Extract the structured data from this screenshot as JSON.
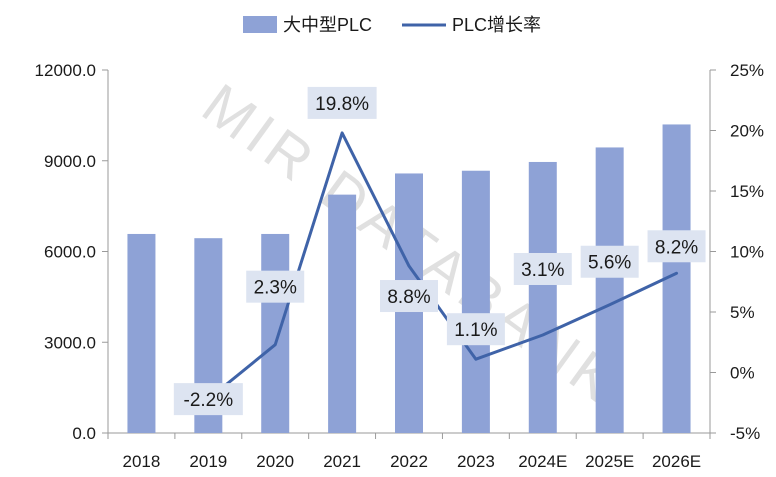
{
  "watermark": "MIR DATABANK",
  "chart_data": {
    "type": "bar+line",
    "categories": [
      "2018",
      "2019",
      "2020",
      "2021",
      "2022",
      "2023",
      "2024E",
      "2025E",
      "2026E"
    ],
    "series": [
      {
        "name": "大中型PLC",
        "type": "bar",
        "axis": "left",
        "color": "#8ea2d6",
        "values": [
          6580,
          6440,
          6580,
          7880,
          8580,
          8670,
          8960,
          9440,
          10200
        ]
      },
      {
        "name": "PLC增长率",
        "type": "line",
        "axis": "right",
        "color": "#3f63a8",
        "values": [
          null,
          -2.2,
          2.3,
          19.8,
          8.8,
          1.1,
          3.1,
          5.6,
          8.2
        ],
        "labels": [
          "",
          "-2.2%",
          "2.3%",
          "19.8%",
          "8.8%",
          "1.1%",
          "3.1%",
          "5.6%",
          "8.2%"
        ]
      }
    ],
    "y_left": {
      "min": 0,
      "max": 12000,
      "step": 3000,
      "ticks": [
        "0.0",
        "3000.0",
        "6000.0",
        "9000.0",
        "12000.0"
      ]
    },
    "y_right": {
      "min": -5,
      "max": 25,
      "step": 5,
      "ticks": [
        "-5%",
        "0%",
        "5%",
        "10%",
        "15%",
        "20%",
        "25%"
      ]
    },
    "legend_position": "top-center",
    "grid": false,
    "label_box_color": "#dde4f1"
  }
}
